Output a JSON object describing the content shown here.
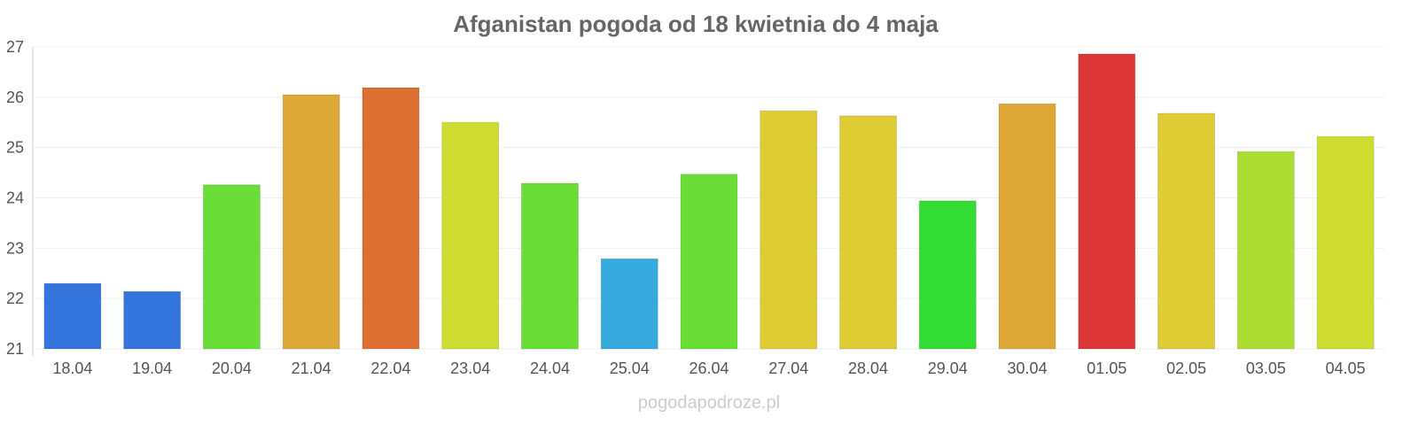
{
  "chart_data": {
    "type": "bar",
    "title": "Afganistan pogoda od 18 kwietnia do 4 maja",
    "xlabel": "",
    "ylabel": "",
    "ylim": [
      21,
      27
    ],
    "yticks": [
      "21",
      "22",
      "23",
      "24",
      "25",
      "26",
      "27"
    ],
    "grid": true,
    "categories": [
      "18.04",
      "19.04",
      "20.04",
      "21.04",
      "22.04",
      "23.04",
      "24.04",
      "25.04",
      "26.04",
      "27.04",
      "28.04",
      "29.04",
      "30.04",
      "01.05",
      "02.05",
      "03.05",
      "04.05"
    ],
    "values": [
      22.3,
      22.14,
      24.26,
      26.05,
      26.19,
      25.5,
      24.29,
      22.79,
      24.47,
      25.73,
      25.63,
      23.94,
      25.87,
      26.86,
      25.68,
      24.92,
      25.22
    ],
    "colors": [
      "#3375dd",
      "#3375dd",
      "#6bdd37",
      "#dda836",
      "#dd6f33",
      "#cfdd33",
      "#6bdd37",
      "#36aadd",
      "#6bdd37",
      "#ddcc33",
      "#ddcc33",
      "#33dd33",
      "#dda836",
      "#dd3636",
      "#ddcc33",
      "#addd33",
      "#cfdd33"
    ]
  },
  "watermark": "pogodapodroze.pl"
}
